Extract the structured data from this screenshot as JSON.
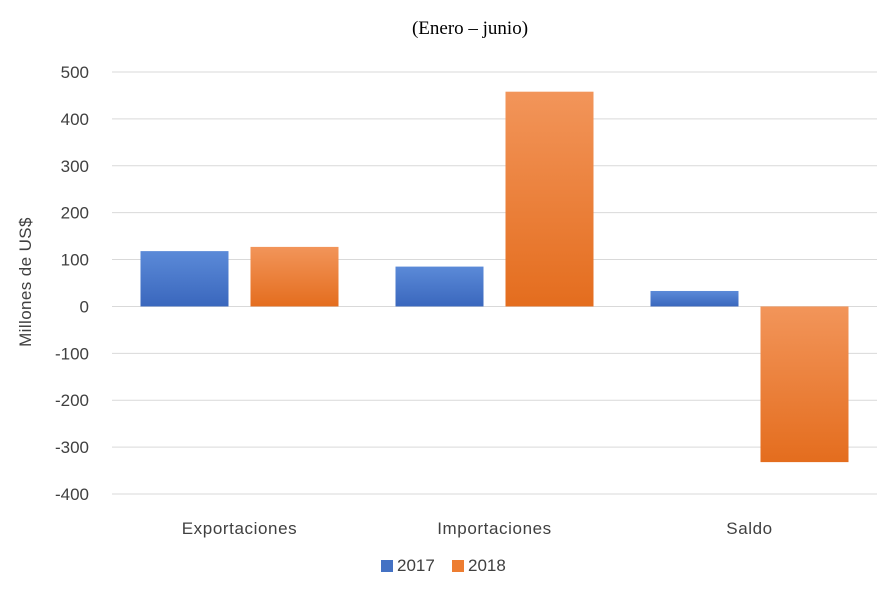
{
  "chart_data": {
    "type": "bar",
    "title": "(Enero – junio)",
    "ylabel": "Millones de US$",
    "xlabel": "",
    "ylim": [
      -400,
      500
    ],
    "yticks": [
      500,
      400,
      300,
      200,
      100,
      0,
      -100,
      -200,
      -300,
      -400
    ],
    "grid": true,
    "legend_position": "bottom",
    "categories": [
      "Exportaciones",
      "Importaciones",
      "Saldo"
    ],
    "series": [
      {
        "name": "2017",
        "color": "#4472c4",
        "values": [
          118,
          85,
          33
        ]
      },
      {
        "name": "2018",
        "color": "#ed7d31",
        "values": [
          127,
          458,
          -332
        ]
      }
    ]
  }
}
